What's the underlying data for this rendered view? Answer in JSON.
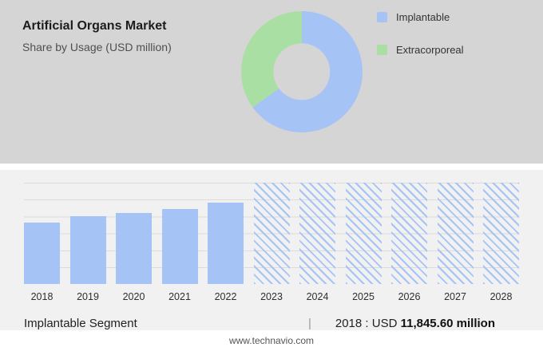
{
  "header": {
    "title": "Artificial Organs Market",
    "subtitle": "Share by Usage (USD million)"
  },
  "chart_data": [
    {
      "type": "pie",
      "donut": true,
      "title": "Share by Usage (USD million)",
      "labels": [
        "Implantable",
        "Extracorporeal"
      ],
      "values_pct": [
        65,
        35
      ],
      "colors": [
        "#a6c3f6",
        "#a9dfa2"
      ],
      "legend_position": "right"
    },
    {
      "type": "bar",
      "title": "Implantable Segment (USD million), 2018-2028",
      "categories": [
        "2018",
        "2019",
        "2020",
        "2021",
        "2022",
        "2023",
        "2024",
        "2025",
        "2026",
        "2027",
        "2028"
      ],
      "series": [
        {
          "name": "Implantable",
          "heights_pct": [
            61,
            67,
            70,
            74,
            80,
            100,
            100,
            100,
            100,
            100,
            100
          ]
        }
      ],
      "bar_styles": [
        "solid",
        "solid",
        "solid",
        "solid",
        "solid",
        "hatched",
        "hatched",
        "hatched",
        "hatched",
        "hatched",
        "hatched"
      ],
      "known_values": {
        "2018": 11845.6
      },
      "grid": true,
      "bar_color": "#a6c3f6",
      "forecast_note": "2023-2028 shown as hatched forecast bars"
    }
  ],
  "caption": {
    "segment": "Implantable Segment",
    "separator": "|",
    "year_prefix": "2018 : USD",
    "value": "11,845.60 million"
  },
  "footer": {
    "website": "www.technavio.com"
  }
}
